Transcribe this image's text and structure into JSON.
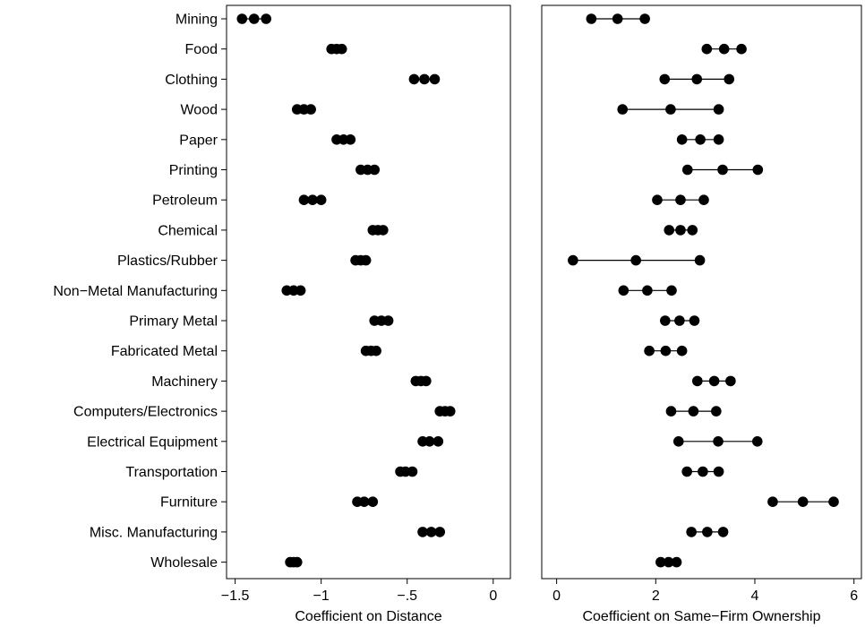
{
  "chart_data": [
    {
      "type": "dot-interval",
      "xlabel": "Coefficient on Distance",
      "xlim": [
        -1.55,
        0.1
      ],
      "xticks": [
        -1.5,
        -1,
        -0.5,
        0
      ],
      "xtick_labels": [
        "−1.5",
        "−1",
        "−.5",
        "0"
      ],
      "categories": [
        "Mining",
        "Food",
        "Clothing",
        "Wood",
        "Paper",
        "Printing",
        "Petroleum",
        "Chemical",
        "Plastics/Rubber",
        "Non−Metal Manufacturing",
        "Primary Metal",
        "Fabricated Metal",
        "Machinery",
        "Computers/Electronics",
        "Electrical Equipment",
        "Transportation",
        "Furniture",
        "Misc. Manufacturing",
        "Wholesale"
      ],
      "series": [
        {
          "low": -1.46,
          "estimate": -1.39,
          "high": -1.32
        },
        {
          "low": -0.94,
          "estimate": -0.91,
          "high": -0.88
        },
        {
          "low": -0.46,
          "estimate": -0.4,
          "high": -0.34
        },
        {
          "low": -1.14,
          "estimate": -1.1,
          "high": -1.06
        },
        {
          "low": -0.91,
          "estimate": -0.87,
          "high": -0.83
        },
        {
          "low": -0.77,
          "estimate": -0.73,
          "high": -0.69
        },
        {
          "low": -1.1,
          "estimate": -1.05,
          "high": -1.0
        },
        {
          "low": -0.7,
          "estimate": -0.67,
          "high": -0.64
        },
        {
          "low": -0.8,
          "estimate": -0.77,
          "high": -0.74
        },
        {
          "low": -1.2,
          "estimate": -1.16,
          "high": -1.12
        },
        {
          "low": -0.69,
          "estimate": -0.65,
          "high": -0.61
        },
        {
          "low": -0.74,
          "estimate": -0.71,
          "high": -0.68
        },
        {
          "low": -0.45,
          "estimate": -0.42,
          "high": -0.39
        },
        {
          "low": -0.31,
          "estimate": -0.28,
          "high": -0.25
        },
        {
          "low": -0.41,
          "estimate": -0.37,
          "high": -0.32
        },
        {
          "low": -0.54,
          "estimate": -0.51,
          "high": -0.47
        },
        {
          "low": -0.79,
          "estimate": -0.75,
          "high": -0.7
        },
        {
          "low": -0.41,
          "estimate": -0.36,
          "high": -0.31
        },
        {
          "low": -1.18,
          "estimate": -1.16,
          "high": -1.14
        }
      ]
    },
    {
      "type": "dot-interval",
      "xlabel": "Coefficient on Same−Firm Ownership",
      "xlim": [
        -0.3,
        6.15
      ],
      "xticks": [
        0,
        2,
        4,
        6
      ],
      "xtick_labels": [
        "0",
        "2",
        "4",
        "6"
      ],
      "categories": [
        "Mining",
        "Food",
        "Clothing",
        "Wood",
        "Paper",
        "Printing",
        "Petroleum",
        "Chemical",
        "Plastics/Rubber",
        "Non−Metal Manufacturing",
        "Primary Metal",
        "Fabricated Metal",
        "Machinery",
        "Computers/Electronics",
        "Electrical Equipment",
        "Transportation",
        "Furniture",
        "Misc. Manufacturing",
        "Wholesale"
      ],
      "series": [
        {
          "low": 0.7,
          "estimate": 1.23,
          "high": 1.78
        },
        {
          "low": 3.03,
          "estimate": 3.38,
          "high": 3.73
        },
        {
          "low": 2.18,
          "estimate": 2.83,
          "high": 3.48
        },
        {
          "low": 1.33,
          "estimate": 2.3,
          "high": 3.27
        },
        {
          "low": 2.53,
          "estimate": 2.9,
          "high": 3.27
        },
        {
          "low": 2.64,
          "estimate": 3.35,
          "high": 4.06
        },
        {
          "low": 2.03,
          "estimate": 2.5,
          "high": 2.97
        },
        {
          "low": 2.27,
          "estimate": 2.5,
          "high": 2.74
        },
        {
          "low": 0.33,
          "estimate": 1.6,
          "high": 2.89
        },
        {
          "low": 1.35,
          "estimate": 1.83,
          "high": 2.32
        },
        {
          "low": 2.19,
          "estimate": 2.48,
          "high": 2.78
        },
        {
          "low": 1.87,
          "estimate": 2.2,
          "high": 2.53
        },
        {
          "low": 2.84,
          "estimate": 3.18,
          "high": 3.51
        },
        {
          "low": 2.31,
          "estimate": 2.76,
          "high": 3.22
        },
        {
          "low": 2.46,
          "estimate": 3.26,
          "high": 4.05
        },
        {
          "low": 2.63,
          "estimate": 2.95,
          "high": 3.27
        },
        {
          "low": 4.36,
          "estimate": 4.97,
          "high": 5.59
        },
        {
          "low": 2.72,
          "estimate": 3.04,
          "high": 3.36
        },
        {
          "low": 2.1,
          "estimate": 2.26,
          "high": 2.42
        }
      ]
    }
  ]
}
